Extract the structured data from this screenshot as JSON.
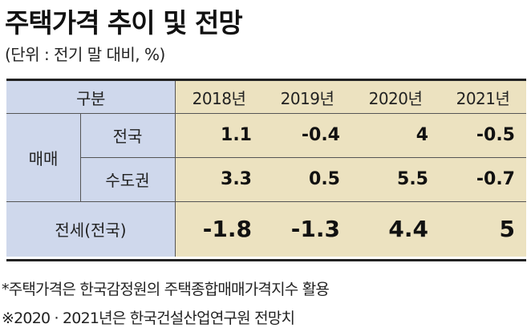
{
  "title": "주택가격 추이 및 전망",
  "subtitle": "(단위 : 전기 말 대비, %)",
  "table": {
    "header_label": "구분",
    "years": [
      "2018년",
      "2019년",
      "2020년",
      "2021년"
    ],
    "group_label": "매매",
    "rows": [
      {
        "label": "전국",
        "values": [
          "1.1",
          "-0.4",
          "4",
          "-0.5"
        ]
      },
      {
        "label": "수도권",
        "values": [
          "3.3",
          "0.5",
          "5.5",
          "-0.7"
        ]
      }
    ],
    "jeonse": {
      "label": "전세(전국)",
      "values": [
        "-1.8",
        "-1.3",
        "4.4",
        "5"
      ]
    }
  },
  "notes": [
    "*주택가격은 한국감정원의 주택종합매매가격지수 활용",
    "※2020 · 2021년은 한국건설산업연구원 전망치"
  ],
  "colors": {
    "label_bg": "#cfd8ec",
    "value_bg": "#ece2c0"
  }
}
